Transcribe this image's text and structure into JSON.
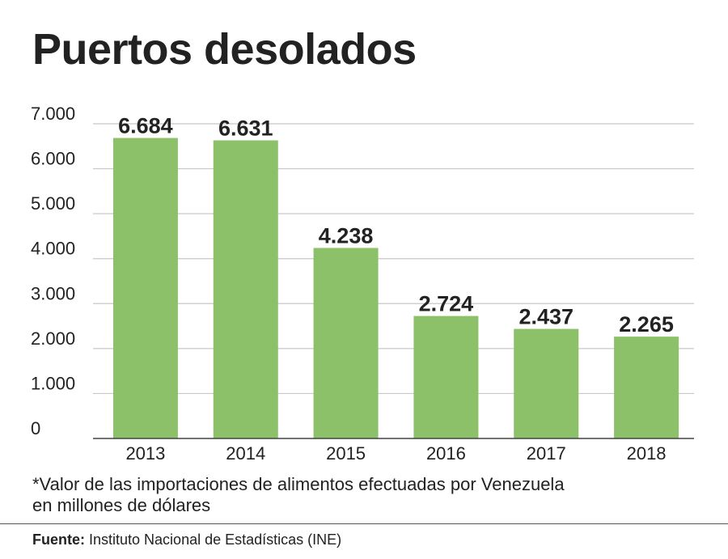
{
  "title": "Puertos desolados",
  "note_line1": "*Valor de las importaciones de alimentos efectuadas por Venezuela",
  "note_line2": "en millones de dólares",
  "source_label": "Fuente:",
  "source_text": "Instituto Nacional de Estadísticas (INE)",
  "colors": {
    "bar": "#8cc16a",
    "grid": "#c8c8c8",
    "axis": "#444444",
    "text": "#222222"
  },
  "chart_data": {
    "type": "bar",
    "categories": [
      "2013",
      "2014",
      "2015",
      "2016",
      "2017",
      "2018"
    ],
    "values": [
      6684,
      6631,
      4238,
      2724,
      2437,
      2265
    ],
    "value_labels": [
      "6.684",
      "6.631",
      "4.238",
      "2.724",
      "2.437",
      "2.265"
    ],
    "ylim": [
      0,
      7000
    ],
    "yticks": [
      0,
      1000,
      2000,
      3000,
      4000,
      5000,
      6000,
      7000
    ],
    "ytick_labels": [
      "0",
      "1.000",
      "2.000",
      "3.000",
      "4.000",
      "5.000",
      "6.000",
      "7.000"
    ],
    "grid": true
  }
}
